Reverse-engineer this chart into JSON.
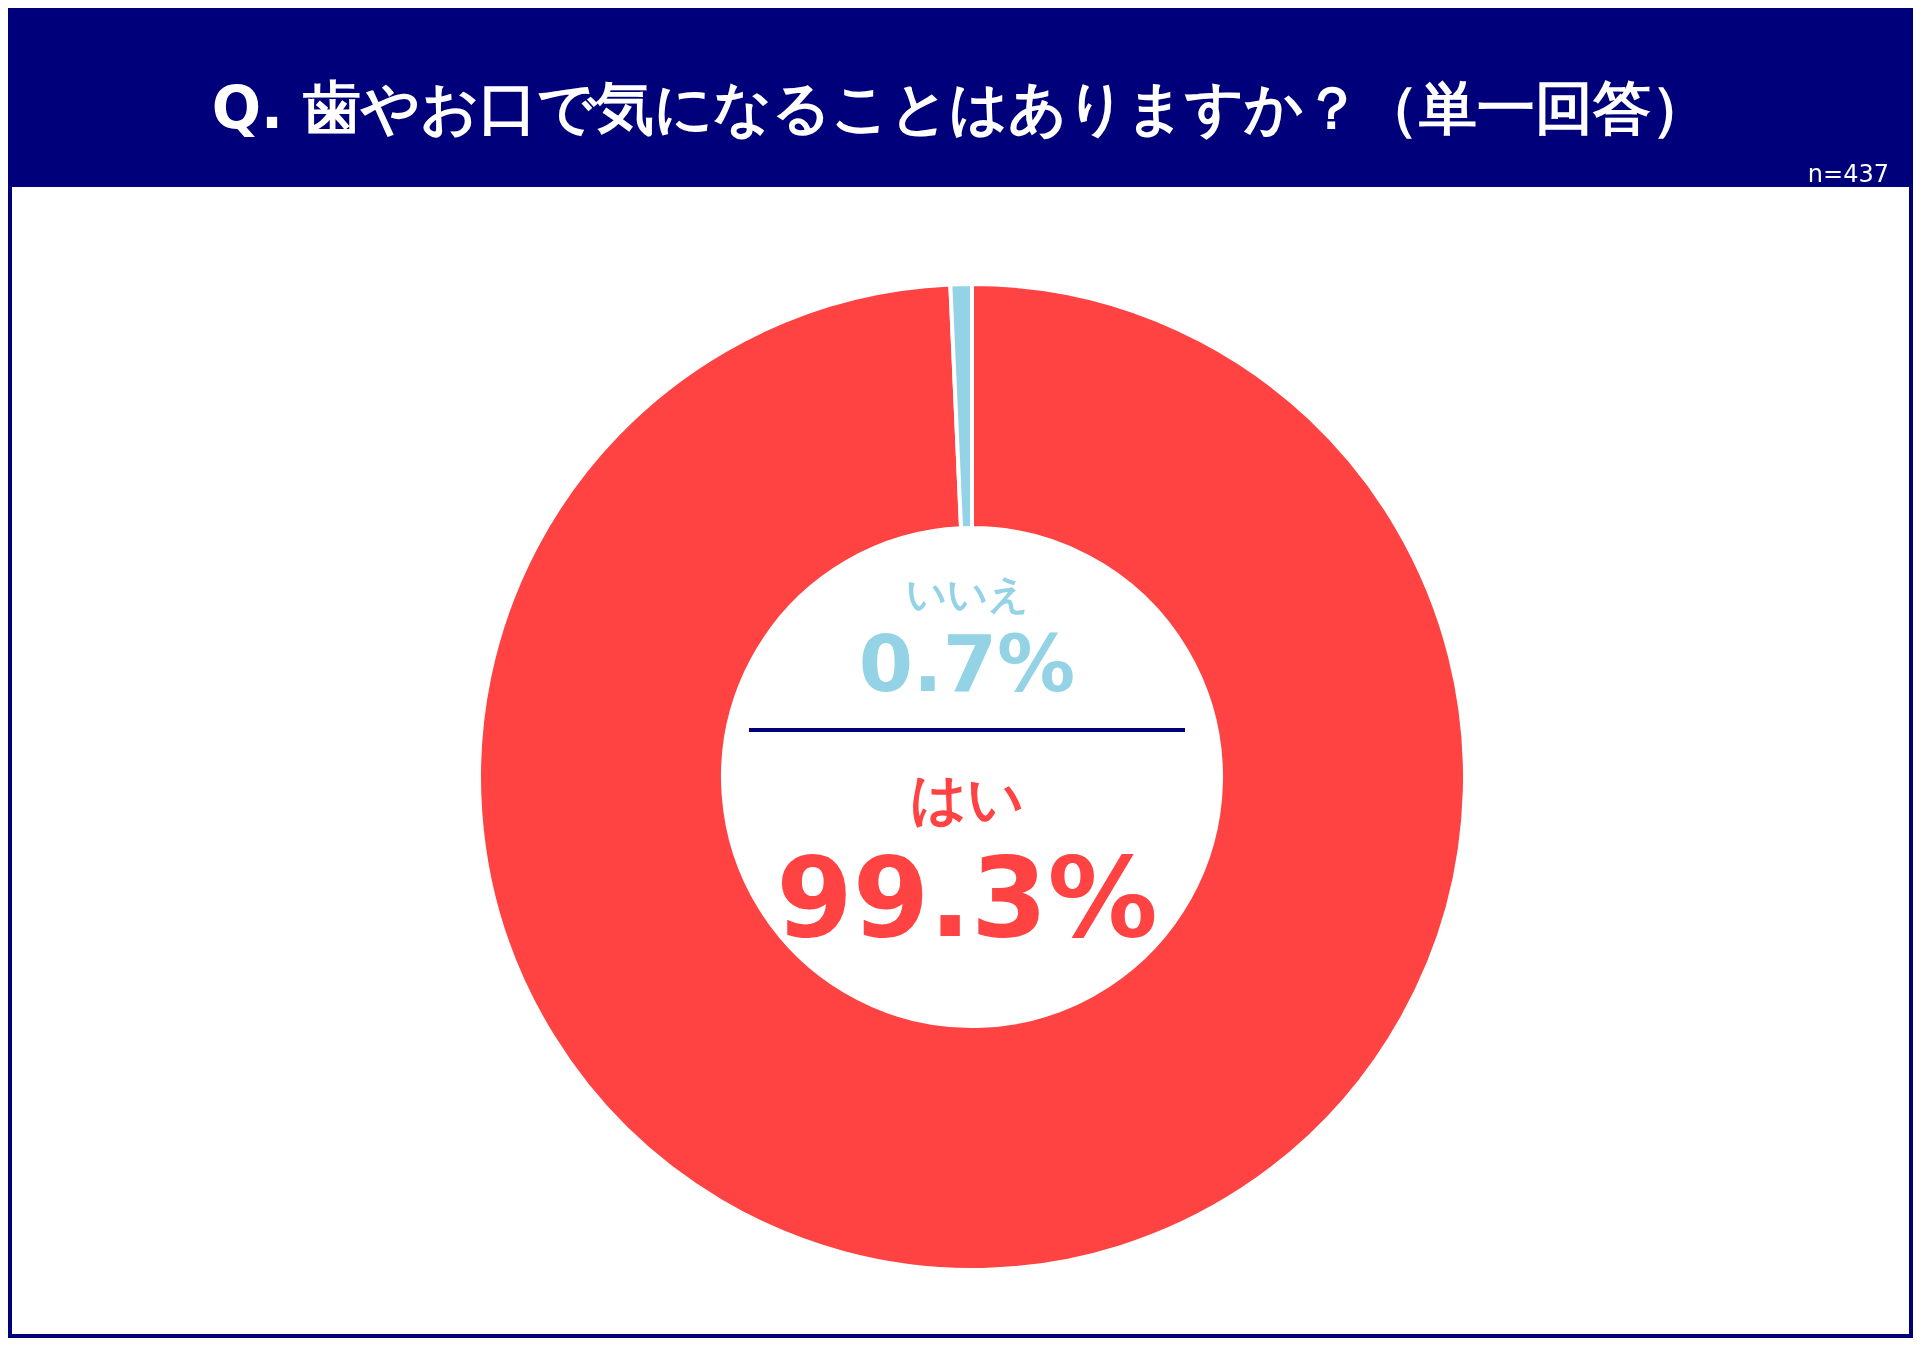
{
  "chart_data": {
    "type": "donut",
    "title": "Q. 歯やお口で気になることはありますか？（単一回答）",
    "annotations": [
      "n=437"
    ],
    "categories": [
      "はい",
      "いいえ"
    ],
    "values": [
      99.3,
      0.7
    ],
    "value_labels": [
      "99.3%",
      "0.7%"
    ],
    "colors": [
      "#ff4242",
      "#94d2e6"
    ],
    "legend": false
  }
}
